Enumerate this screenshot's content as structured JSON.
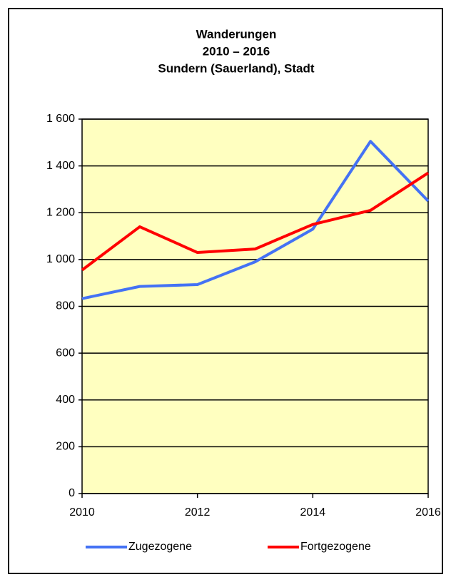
{
  "chart_data": {
    "type": "line",
    "title": [
      "Wanderungen",
      "2010 – 2016",
      "Sundern (Sauerland), Stadt"
    ],
    "x": [
      2010,
      2011,
      2012,
      2013,
      2014,
      2015,
      2016
    ],
    "series": [
      {
        "name": "Zugezogene",
        "color": "#4472f4",
        "values": [
          833,
          885,
          893,
          990,
          1130,
          1505,
          1250
        ]
      },
      {
        "name": "Fortgezogene",
        "color": "#ff0000",
        "values": [
          955,
          1140,
          1030,
          1045,
          1150,
          1210,
          1370
        ]
      }
    ],
    "xlim": [
      2010,
      2016
    ],
    "xticks": [
      2010,
      2012,
      2014,
      2016
    ],
    "ylim": [
      0,
      1600
    ],
    "yticks": [
      0,
      200,
      400,
      600,
      800,
      {
        "value": 1000,
        "label": "1 000"
      },
      {
        "value": 1200,
        "label": "1 200"
      },
      {
        "value": 1400,
        "label": "1 400"
      },
      {
        "value": 1600,
        "label": "1 600"
      }
    ],
    "grid": true,
    "legend": "bottom",
    "background": "#ffffc0"
  }
}
